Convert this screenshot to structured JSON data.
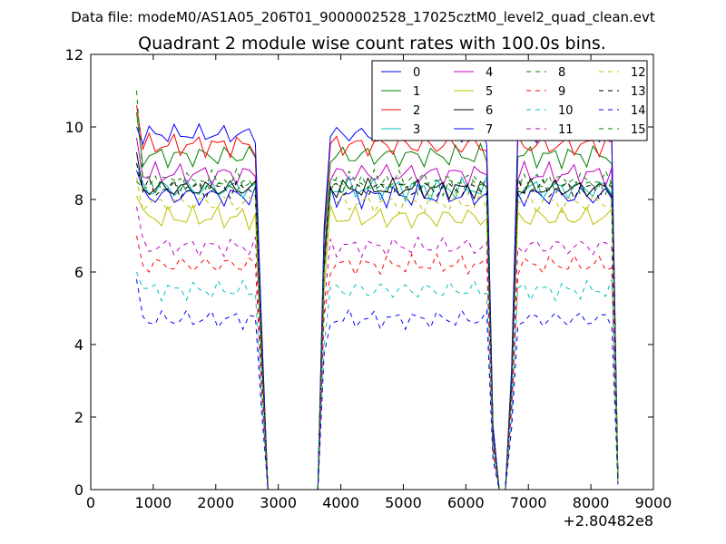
{
  "chart_data": {
    "type": "line",
    "suptitle": "Data file: modeM0/AS1A05_206T01_9000002528_17025cztM0_level2_quad_clean.evt",
    "title": "Quadrant 2 module wise count rates with 100.0s bins.",
    "xlabel": "",
    "ylabel": "",
    "x_offset_label": "+2.80482e8",
    "xlim": [
      0,
      9000
    ],
    "ylim": [
      0,
      12
    ],
    "xticks": [
      0,
      1000,
      2000,
      3000,
      4000,
      5000,
      6000,
      7000,
      8000,
      9000
    ],
    "yticks": [
      0,
      2,
      4,
      6,
      8,
      10,
      12
    ],
    "legend_position": "top-right",
    "legend_columns": 4,
    "x_start": 733,
    "x_step": 100,
    "profile": [
      1,
      1,
      1,
      1,
      1,
      1,
      1,
      1,
      1,
      1,
      1,
      1,
      1,
      1,
      1,
      1,
      1,
      1,
      1,
      1,
      0.45,
      0,
      0,
      0,
      0,
      0,
      0,
      0,
      0,
      0,
      0.75,
      1,
      1,
      1,
      1,
      1,
      1,
      1,
      1,
      1,
      1,
      1,
      1,
      1,
      1,
      1,
      1,
      1,
      1,
      1,
      1,
      1,
      1,
      1,
      1,
      1,
      1,
      0.18,
      0,
      0,
      0.35,
      1,
      1,
      1,
      1,
      1,
      1,
      1,
      1,
      1,
      1,
      1,
      1,
      1,
      1,
      1,
      1,
      0.03
    ],
    "series": [
      {
        "name": "0",
        "level": 8.1,
        "first": 8.8,
        "amp": 0.35,
        "color": "#0000ff",
        "dash": ""
      },
      {
        "name": "1",
        "level": 9.2,
        "first": 10.4,
        "amp": 0.35,
        "color": "#008000",
        "dash": ""
      },
      {
        "name": "2",
        "level": 9.5,
        "first": 10.6,
        "amp": 0.35,
        "color": "#ff0000",
        "dash": ""
      },
      {
        "name": "3",
        "level": 8.3,
        "first": 9.0,
        "amp": 0.35,
        "color": "#00bfbf",
        "dash": ""
      },
      {
        "name": "4",
        "level": 8.7,
        "first": 9.7,
        "amp": 0.35,
        "color": "#bf00bf",
        "dash": ""
      },
      {
        "name": "5",
        "level": 7.5,
        "first": 8.1,
        "amp": 0.35,
        "color": "#bfbf00",
        "dash": ""
      },
      {
        "name": "6",
        "level": 8.3,
        "first": 9.3,
        "amp": 0.3,
        "color": "#000000",
        "dash": ""
      },
      {
        "name": "7",
        "level": 9.8,
        "first": 10.0,
        "amp": 0.3,
        "color": "#0000ff",
        "dash": ""
      },
      {
        "name": "8",
        "level": 8.5,
        "first": 11.0,
        "amp": 0.35,
        "color": "#008000",
        "dash": "5,5"
      },
      {
        "name": "9",
        "level": 6.2,
        "first": 7.0,
        "amp": 0.3,
        "color": "#ff0000",
        "dash": "5,5"
      },
      {
        "name": "10",
        "level": 5.5,
        "first": 6.0,
        "amp": 0.3,
        "color": "#00bfbf",
        "dash": "5,5"
      },
      {
        "name": "11",
        "level": 6.7,
        "first": 7.8,
        "amp": 0.3,
        "color": "#bf00bf",
        "dash": "5,5"
      },
      {
        "name": "12",
        "level": 7.9,
        "first": 8.6,
        "amp": 0.3,
        "color": "#bfbf00",
        "dash": "5,5"
      },
      {
        "name": "13",
        "level": 8.3,
        "first": 9.0,
        "amp": 0.3,
        "color": "#000000",
        "dash": "5,5"
      },
      {
        "name": "14",
        "level": 4.7,
        "first": 5.8,
        "amp": 0.3,
        "color": "#0000ff",
        "dash": "5,5"
      },
      {
        "name": "15",
        "level": 8.4,
        "first": 8.5,
        "amp": 0.3,
        "color": "#008000",
        "dash": "5,5"
      }
    ]
  }
}
